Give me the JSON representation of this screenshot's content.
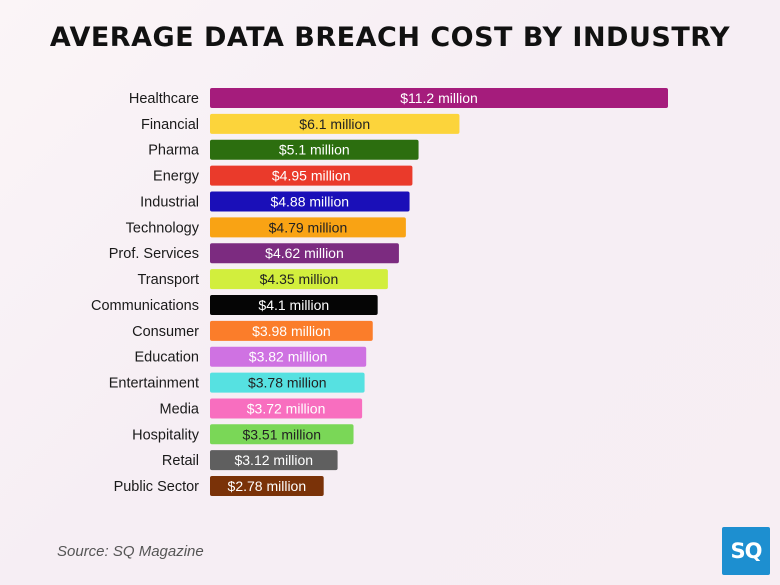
{
  "title": "AVERAGE DATA BREACH COST BY INDUSTRY",
  "source": "Source: SQ Magazine",
  "logo_text": "SQ",
  "colors": {
    "logo_bg": "#1d8fd0",
    "title": "#111111"
  },
  "chart_data": {
    "type": "bar",
    "orientation": "horizontal",
    "title": "AVERAGE DATA BREACH COST BY INDUSTRY",
    "categories": [
      "Healthcare",
      "Financial",
      "Pharma",
      "Energy",
      "Industrial",
      "Technology",
      "Prof. Services",
      "Transport",
      "Communications",
      "Consumer",
      "Education",
      "Entertainment",
      "Media",
      "Hospitality",
      "Retail",
      "Public Sector"
    ],
    "values": [
      11.2,
      6.1,
      5.1,
      4.95,
      4.88,
      4.79,
      4.62,
      4.35,
      4.1,
      3.98,
      3.82,
      3.78,
      3.72,
      3.51,
      3.12,
      2.78
    ],
    "labels": [
      "$11.2 million",
      "$6.1 million",
      "$5.1 million",
      "$4.95 million",
      "$4.88 million",
      "$4.79 million",
      "$4.62 million",
      "$4.35 million",
      "$4.1 million",
      "$3.98 million",
      "$3.82 million",
      "$3.78 million",
      "$3.72 million",
      "$3.51 million",
      "$3.12 million",
      "$2.78 million"
    ],
    "bar_colors": [
      "#a51c7c",
      "#fcd43b",
      "#2c6e0f",
      "#ea3a2b",
      "#1a0fb8",
      "#f9a314",
      "#7c2b80",
      "#d2ee3d",
      "#050505",
      "#fb7d2a",
      "#cf72e2",
      "#56e1e1",
      "#f86ebf",
      "#7ad757",
      "#5f5f5f",
      "#7a3208"
    ],
    "label_colors": [
      "#ffffff",
      "#222222",
      "#ffffff",
      "#ffffff",
      "#ffffff",
      "#222222",
      "#ffffff",
      "#222222",
      "#ffffff",
      "#ffffff",
      "#ffffff",
      "#222222",
      "#ffffff",
      "#222222",
      "#ffffff",
      "#ffffff"
    ],
    "xlim": [
      0,
      11.2
    ],
    "grid": false,
    "xlabel": "",
    "ylabel": ""
  }
}
